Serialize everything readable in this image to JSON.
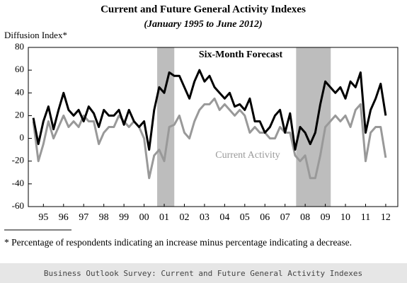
{
  "chart_data": {
    "type": "line",
    "title": "Current and Future General Activity Indexes",
    "subtitle": "(January 1995 to June 2012)",
    "y_label": "Diffusion Index*",
    "x": [
      1995.0,
      1995.25,
      1995.5,
      1995.75,
      1996.0,
      1996.25,
      1996.5,
      1996.75,
      1997.0,
      1997.25,
      1997.5,
      1997.75,
      1998.0,
      1998.25,
      1998.5,
      1998.75,
      1999.0,
      1999.25,
      1999.5,
      1999.75,
      2000.0,
      2000.25,
      2000.5,
      2000.75,
      2001.0,
      2001.25,
      2001.5,
      2001.75,
      2002.0,
      2002.25,
      2002.5,
      2002.75,
      2003.0,
      2003.25,
      2003.5,
      2003.75,
      2004.0,
      2004.25,
      2004.5,
      2004.75,
      2005.0,
      2005.25,
      2005.5,
      2005.75,
      2006.0,
      2006.25,
      2006.5,
      2006.75,
      2007.0,
      2007.25,
      2007.5,
      2007.75,
      2008.0,
      2008.25,
      2008.5,
      2008.75,
      2009.0,
      2009.25,
      2009.5,
      2009.75,
      2010.0,
      2010.25,
      2010.5,
      2010.75,
      2011.0,
      2011.25,
      2011.5,
      2011.75,
      2012.0,
      2012.25,
      2012.5
    ],
    "series": [
      {
        "name": "Six-Month Forecast",
        "color": "#000000",
        "values": [
          18,
          -5,
          15,
          28,
          8,
          25,
          40,
          25,
          20,
          25,
          15,
          28,
          22,
          10,
          25,
          20,
          20,
          25,
          12,
          25,
          15,
          10,
          15,
          -10,
          25,
          45,
          40,
          58,
          55,
          55,
          45,
          35,
          50,
          60,
          50,
          55,
          45,
          40,
          35,
          40,
          28,
          30,
          25,
          35,
          15,
          15,
          5,
          10,
          20,
          25,
          5,
          22,
          -10,
          10,
          5,
          -5,
          5,
          30,
          50,
          45,
          40,
          45,
          35,
          50,
          45,
          58,
          5,
          25,
          35,
          48,
          20
        ]
      },
      {
        "name": "Current Activity",
        "color": "#999999",
        "values": [
          15,
          -20,
          -5,
          15,
          0,
          10,
          20,
          10,
          15,
          10,
          20,
          15,
          15,
          -5,
          5,
          10,
          10,
          20,
          15,
          10,
          15,
          10,
          0,
          -35,
          -15,
          -10,
          -20,
          10,
          12,
          20,
          5,
          0,
          15,
          25,
          30,
          30,
          35,
          25,
          30,
          25,
          20,
          25,
          20,
          5,
          10,
          5,
          5,
          0,
          0,
          10,
          5,
          5,
          -15,
          -20,
          -15,
          -35,
          -35,
          -15,
          10,
          15,
          20,
          15,
          20,
          10,
          25,
          30,
          -20,
          5,
          10,
          10,
          -17
        ]
      }
    ],
    "shaded_periods": [
      [
        2001.15,
        2002.0
      ],
      [
        2008.05,
        2009.77
      ]
    ],
    "shade_color": "#bdbdbd",
    "xlim": [
      1994.75,
      2013.1
    ],
    "xticks": [
      {
        "value": 1995.5,
        "label": "95"
      },
      {
        "value": 1996.5,
        "label": "96"
      },
      {
        "value": 1997.5,
        "label": "97"
      },
      {
        "value": 1998.5,
        "label": "98"
      },
      {
        "value": 1999.5,
        "label": "99"
      },
      {
        "value": 2000.5,
        "label": "00"
      },
      {
        "value": 2001.5,
        "label": "01"
      },
      {
        "value": 2002.5,
        "label": "02"
      },
      {
        "value": 2003.5,
        "label": "03"
      },
      {
        "value": 2004.5,
        "label": "04"
      },
      {
        "value": 2005.5,
        "label": "05"
      },
      {
        "value": 2006.5,
        "label": "06"
      },
      {
        "value": 2007.5,
        "label": "07"
      },
      {
        "value": 2008.5,
        "label": "08"
      },
      {
        "value": 2009.5,
        "label": "09"
      },
      {
        "value": 2010.5,
        "label": "10"
      },
      {
        "value": 2011.5,
        "label": "11"
      },
      {
        "value": 2012.5,
        "label": "12"
      }
    ],
    "ylim": [
      -60,
      80
    ],
    "yticks": [
      -60,
      -40,
      -20,
      0,
      20,
      40,
      60,
      80
    ],
    "grid": false
  },
  "footnote": "* Percentage of respondents indicating an increase minus percentage indicating a decrease.",
  "footer": "Business Outlook Survey: Current and Future General Activity Indexes"
}
